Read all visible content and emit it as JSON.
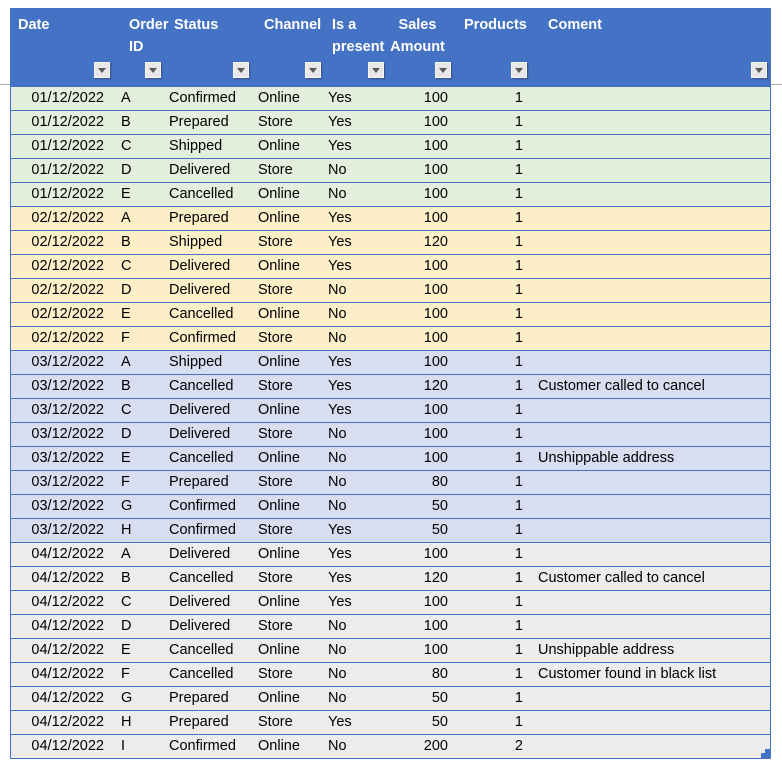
{
  "colors": {
    "header_bg": "#4472C4",
    "header_text": "#FFFFFF",
    "border": "#4472C4",
    "body_text": "#000000",
    "filter_button_bg": "#E7E7E7",
    "filter_arrow": "#595959",
    "gridline": "#ABABAB"
  },
  "icons": {
    "filter_dropdown": "▾"
  },
  "table": {
    "columns": [
      {
        "key": "date",
        "label": "Date",
        "label2": ""
      },
      {
        "key": "order_id",
        "label": "Order",
        "label2": "ID"
      },
      {
        "key": "status",
        "label": "Status",
        "label2": ""
      },
      {
        "key": "channel",
        "label": "Channel",
        "label2": ""
      },
      {
        "key": "present",
        "label": "Is a",
        "label2": "present"
      },
      {
        "key": "sales",
        "label": "Sales",
        "label2": "Amount"
      },
      {
        "key": "products",
        "label": "Products",
        "label2": ""
      },
      {
        "key": "comment",
        "label": "Coment",
        "label2": ""
      }
    ],
    "group_colors": {
      "day1": "#E3EFDC",
      "day2": "#FCEFC8",
      "day3": "#D8DEF0",
      "day4": "#ECECEC"
    },
    "rows": [
      {
        "group": "day1",
        "date": "01/12/2022",
        "order_id": "A",
        "status": "Confirmed",
        "channel": "Online",
        "present": "Yes",
        "sales": "100",
        "products": "1",
        "comment": ""
      },
      {
        "group": "day1",
        "date": "01/12/2022",
        "order_id": "B",
        "status": "Prepared",
        "channel": "Store",
        "present": "Yes",
        "sales": "100",
        "products": "1",
        "comment": ""
      },
      {
        "group": "day1",
        "date": "01/12/2022",
        "order_id": "C",
        "status": "Shipped",
        "channel": "Online",
        "present": "Yes",
        "sales": "100",
        "products": "1",
        "comment": ""
      },
      {
        "group": "day1",
        "date": "01/12/2022",
        "order_id": "D",
        "status": "Delivered",
        "channel": "Store",
        "present": "No",
        "sales": "100",
        "products": "1",
        "comment": ""
      },
      {
        "group": "day1",
        "date": "01/12/2022",
        "order_id": "E",
        "status": "Cancelled",
        "channel": "Online",
        "present": "No",
        "sales": "100",
        "products": "1",
        "comment": ""
      },
      {
        "group": "day2",
        "date": "02/12/2022",
        "order_id": "A",
        "status": "Prepared",
        "channel": "Online",
        "present": "Yes",
        "sales": "100",
        "products": "1",
        "comment": ""
      },
      {
        "group": "day2",
        "date": "02/12/2022",
        "order_id": "B",
        "status": "Shipped",
        "channel": "Store",
        "present": "Yes",
        "sales": "120",
        "products": "1",
        "comment": ""
      },
      {
        "group": "day2",
        "date": "02/12/2022",
        "order_id": "C",
        "status": "Delivered",
        "channel": "Online",
        "present": "Yes",
        "sales": "100",
        "products": "1",
        "comment": ""
      },
      {
        "group": "day2",
        "date": "02/12/2022",
        "order_id": "D",
        "status": "Delivered",
        "channel": "Store",
        "present": "No",
        "sales": "100",
        "products": "1",
        "comment": ""
      },
      {
        "group": "day2",
        "date": "02/12/2022",
        "order_id": "E",
        "status": "Cancelled",
        "channel": "Online",
        "present": "No",
        "sales": "100",
        "products": "1",
        "comment": ""
      },
      {
        "group": "day2",
        "date": "02/12/2022",
        "order_id": "F",
        "status": "Confirmed",
        "channel": "Store",
        "present": "No",
        "sales": "100",
        "products": "1",
        "comment": ""
      },
      {
        "group": "day3",
        "date": "03/12/2022",
        "order_id": "A",
        "status": "Shipped",
        "channel": "Online",
        "present": "Yes",
        "sales": "100",
        "products": "1",
        "comment": ""
      },
      {
        "group": "day3",
        "date": "03/12/2022",
        "order_id": "B",
        "status": "Cancelled",
        "channel": "Store",
        "present": "Yes",
        "sales": "120",
        "products": "1",
        "comment": "Customer called to cancel"
      },
      {
        "group": "day3",
        "date": "03/12/2022",
        "order_id": "C",
        "status": "Delivered",
        "channel": "Online",
        "present": "Yes",
        "sales": "100",
        "products": "1",
        "comment": ""
      },
      {
        "group": "day3",
        "date": "03/12/2022",
        "order_id": "D",
        "status": "Delivered",
        "channel": "Store",
        "present": "No",
        "sales": "100",
        "products": "1",
        "comment": ""
      },
      {
        "group": "day3",
        "date": "03/12/2022",
        "order_id": "E",
        "status": "Cancelled",
        "channel": "Online",
        "present": "No",
        "sales": "100",
        "products": "1",
        "comment": "Unshippable address"
      },
      {
        "group": "day3",
        "date": "03/12/2022",
        "order_id": "F",
        "status": "Prepared",
        "channel": "Store",
        "present": "No",
        "sales": "80",
        "products": "1",
        "comment": ""
      },
      {
        "group": "day3",
        "date": "03/12/2022",
        "order_id": "G",
        "status": "Confirmed",
        "channel": "Online",
        "present": "No",
        "sales": "50",
        "products": "1",
        "comment": ""
      },
      {
        "group": "day3",
        "date": "03/12/2022",
        "order_id": "H",
        "status": "Confirmed",
        "channel": "Store",
        "present": "Yes",
        "sales": "50",
        "products": "1",
        "comment": ""
      },
      {
        "group": "day4",
        "date": "04/12/2022",
        "order_id": "A",
        "status": "Delivered",
        "channel": "Online",
        "present": "Yes",
        "sales": "100",
        "products": "1",
        "comment": ""
      },
      {
        "group": "day4",
        "date": "04/12/2022",
        "order_id": "B",
        "status": "Cancelled",
        "channel": "Store",
        "present": "Yes",
        "sales": "120",
        "products": "1",
        "comment": "Customer called to cancel"
      },
      {
        "group": "day4",
        "date": "04/12/2022",
        "order_id": "C",
        "status": "Delivered",
        "channel": "Online",
        "present": "Yes",
        "sales": "100",
        "products": "1",
        "comment": ""
      },
      {
        "group": "day4",
        "date": "04/12/2022",
        "order_id": "D",
        "status": "Delivered",
        "channel": "Store",
        "present": "No",
        "sales": "100",
        "products": "1",
        "comment": ""
      },
      {
        "group": "day4",
        "date": "04/12/2022",
        "order_id": "E",
        "status": "Cancelled",
        "channel": "Online",
        "present": "No",
        "sales": "100",
        "products": "1",
        "comment": "Unshippable address"
      },
      {
        "group": "day4",
        "date": "04/12/2022",
        "order_id": "F",
        "status": "Cancelled",
        "channel": "Store",
        "present": "No",
        "sales": "80",
        "products": "1",
        "comment": "Customer found in black list"
      },
      {
        "group": "day4",
        "date": "04/12/2022",
        "order_id": "G",
        "status": "Prepared",
        "channel": "Online",
        "present": "No",
        "sales": "50",
        "products": "1",
        "comment": ""
      },
      {
        "group": "day4",
        "date": "04/12/2022",
        "order_id": "H",
        "status": "Prepared",
        "channel": "Store",
        "present": "Yes",
        "sales": "50",
        "products": "1",
        "comment": ""
      },
      {
        "group": "day4",
        "date": "04/12/2022",
        "order_id": "I",
        "status": "Confirmed",
        "channel": "Online",
        "present": "No",
        "sales": "200",
        "products": "2",
        "comment": ""
      }
    ]
  }
}
